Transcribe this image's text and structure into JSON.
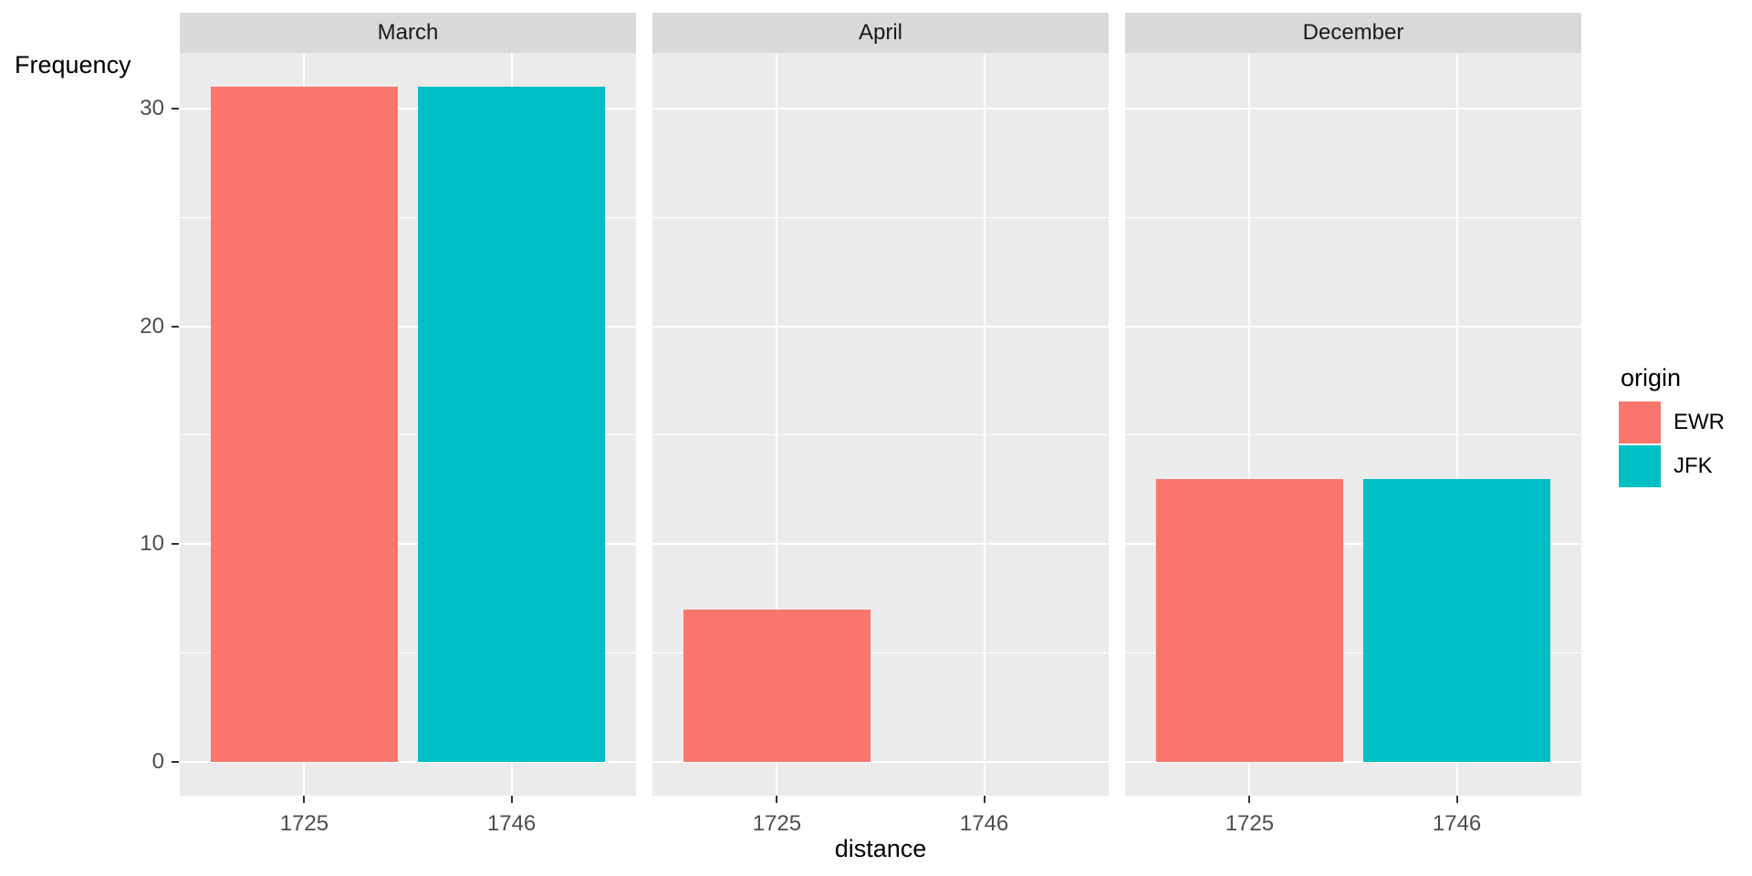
{
  "style": {
    "panel_bg": "#EBEBEB",
    "strip_bg": "#D9D9D9",
    "gridline": "#FFFFFF",
    "axis_text": "#4D4D4D",
    "tick_mark": "#333333",
    "title_text": "#000000"
  },
  "chart_data": {
    "type": "bar",
    "title": "",
    "xlabel": "distance",
    "ylabel": "Frequency",
    "legend_title": "origin",
    "legend_position": "right",
    "grid": "on",
    "categories": [
      "1725",
      "1746"
    ],
    "y_ticks": [
      0,
      10,
      20,
      30
    ],
    "y_minor_ticks": [
      5,
      15,
      25
    ],
    "ylim": [
      0,
      31
    ],
    "series": [
      {
        "name": "EWR",
        "color": "#F8766D"
      },
      {
        "name": "JFK",
        "color": "#00BFC4"
      }
    ],
    "facets": [
      {
        "label": "March",
        "bars": [
          {
            "x": "1725",
            "series": "EWR",
            "value": 31
          },
          {
            "x": "1746",
            "series": "JFK",
            "value": 31
          }
        ]
      },
      {
        "label": "April",
        "bars": [
          {
            "x": "1725",
            "series": "EWR",
            "value": 7
          }
        ]
      },
      {
        "label": "December",
        "bars": [
          {
            "x": "1725",
            "series": "EWR",
            "value": 13
          },
          {
            "x": "1746",
            "series": "JFK",
            "value": 13
          }
        ]
      }
    ]
  }
}
